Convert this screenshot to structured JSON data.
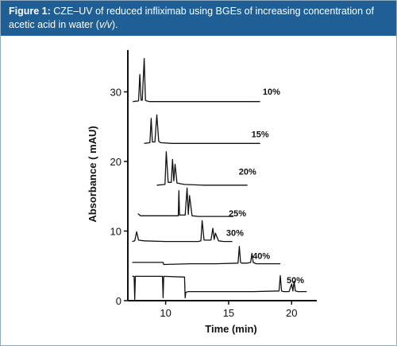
{
  "caption": {
    "label": "Figure 1:",
    "text_a": "CZE–UV of reduced infliximab using BGEs of increasing concentration of acetic acid in water (",
    "text_italic": "v/v",
    "text_b": ")."
  },
  "colors": {
    "caption_bar": "#1f5f95",
    "frame": "#8fa9bf",
    "trace": "#111111"
  },
  "chart_data": {
    "type": "line",
    "title": "",
    "xlabel": "Time (min)",
    "ylabel": "Absorbance ( mAU)",
    "xlim": [
      7,
      22
    ],
    "ylim": [
      0,
      36
    ],
    "xticks": [
      10,
      15,
      20
    ],
    "yticks": [
      0,
      10,
      20,
      30
    ],
    "grid": false,
    "legend": "none",
    "series": [
      {
        "name": "10%",
        "label_x": 18.4,
        "label_y": 29.6,
        "x": [
          7.4,
          7.85,
          7.95,
          8.05,
          8.15,
          8.3,
          8.4,
          8.5,
          8.7,
          9.5,
          12,
          14.5,
          17.5
        ],
        "y": [
          28.6,
          28.7,
          32.5,
          28.8,
          28.8,
          34.8,
          28.8,
          28.7,
          28.6,
          28.6,
          28.6,
          28.6,
          28.6
        ]
      },
      {
        "name": "15%",
        "label_x": 17.5,
        "label_y": 23.5,
        "x": [
          8.3,
          8.75,
          8.85,
          8.95,
          9.15,
          9.3,
          9.45,
          9.6,
          10.5,
          12.5,
          15,
          17.5
        ],
        "y": [
          22.6,
          22.7,
          26.2,
          22.8,
          22.8,
          26.7,
          22.9,
          22.7,
          22.6,
          22.6,
          22.6,
          22.6
        ]
      },
      {
        "name": "20%",
        "label_x": 16.5,
        "label_y": 18.1,
        "x": [
          9.3,
          9.95,
          10.05,
          10.2,
          10.45,
          10.55,
          10.65,
          10.75,
          10.9,
          11.5,
          13,
          15,
          16.5
        ],
        "y": [
          16.6,
          16.7,
          21.4,
          17.0,
          17.0,
          20.3,
          17.2,
          19.6,
          16.9,
          16.7,
          16.6,
          16.6,
          16.6
        ]
      },
      {
        "name": "25%",
        "label_x": 15.7,
        "label_y": 12.1,
        "x": [
          7.8,
          8.0,
          11.0,
          11.05,
          11.1,
          11.2,
          11.55,
          11.7,
          11.8,
          11.9,
          12.1,
          12.6,
          14,
          15.4
        ],
        "y": [
          12.5,
          12.2,
          12.2,
          15.8,
          12.3,
          12.3,
          12.3,
          16.2,
          12.4,
          15.1,
          12.2,
          12.1,
          12.1,
          12.1
        ]
      },
      {
        "name": "30%",
        "label_x": 15.5,
        "label_y": 9.3,
        "x": [
          7.35,
          7.55,
          7.7,
          7.85,
          8.3,
          10,
          12.6,
          12.8,
          12.9,
          13.05,
          13.6,
          13.75,
          13.85,
          13.95,
          14.2,
          14.6,
          15.3
        ],
        "y": [
          8.5,
          8.6,
          9.9,
          8.7,
          8.6,
          8.5,
          8.5,
          8.6,
          11.5,
          8.7,
          8.7,
          10.4,
          8.8,
          9.7,
          8.6,
          8.5,
          8.5
        ]
      },
      {
        "name": "40%",
        "label_x": 17.6,
        "label_y": 6.0,
        "x": [
          7.35,
          9.8,
          9.85,
          12,
          14,
          15.75,
          15.85,
          15.95,
          16.05,
          16.5,
          16.75,
          16.85,
          16.95,
          17.2,
          18,
          19.1
        ],
        "y": [
          5.5,
          5.5,
          5.2,
          5.3,
          5.3,
          5.4,
          7.8,
          5.5,
          5.4,
          5.4,
          5.5,
          6.8,
          5.5,
          5.3,
          5.3,
          5.3
        ]
      },
      {
        "name": "50%",
        "label_x": 20.3,
        "label_y": 2.5,
        "x": [
          7.35,
          7.5,
          7.55,
          7.6,
          7.7,
          9.75,
          9.8,
          9.85,
          11.5,
          11.55,
          11.6,
          11.8,
          14,
          17,
          19.0,
          19.1,
          19.2,
          19.35,
          19.8,
          20.0,
          20.1,
          20.2,
          20.3,
          20.5,
          21.2
        ],
        "y": [
          3.5,
          3.5,
          0.2,
          3.5,
          3.5,
          3.5,
          0.4,
          3.5,
          3.4,
          0.4,
          1.2,
          1.3,
          1.3,
          1.3,
          1.4,
          3.6,
          1.4,
          1.3,
          1.3,
          2.4,
          1.4,
          2.8,
          1.4,
          1.3,
          1.3
        ]
      }
    ]
  }
}
